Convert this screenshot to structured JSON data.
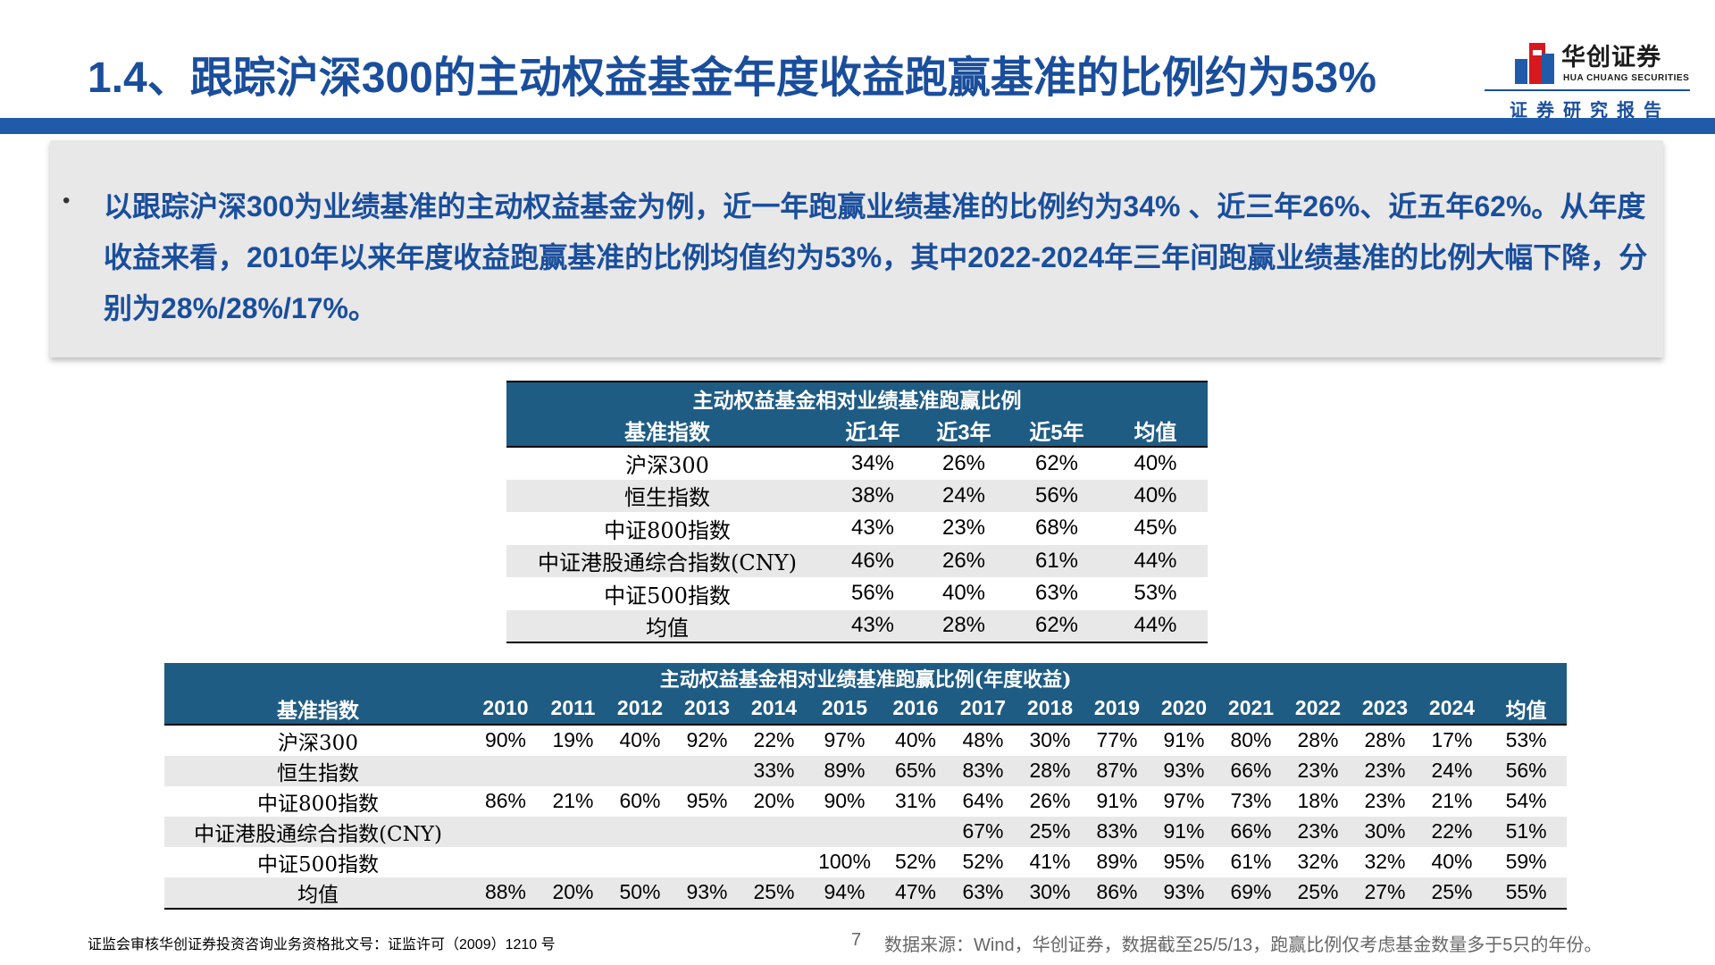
{
  "header": {
    "title": "1.4、跟踪沪深300的主动权益基金年度收益跑赢基准的比例约为53%",
    "logo_cn": "华创证券",
    "logo_en": "HUA CHUANG SECURITIES",
    "subtag": "证券研究报告"
  },
  "summary": {
    "bullet": "•",
    "text": "以跟踪沪深300为业绩基准的主动权益基金为例，近一年跑赢业绩基准的比例约为34% 、近三年26%、近五年62%。从年度收益来看，2010年以来年度收益跑赢基准的比例均值约为53%，其中2022-2024年三年间跑赢业绩基准的比例大幅下降，分别为28%/28%/17%。"
  },
  "table1": {
    "caption": "主动权益基金相对业绩基准跑赢比例",
    "headers": [
      "基准指数",
      "近1年",
      "近3年",
      "近5年",
      "均值"
    ],
    "rows": [
      [
        "沪深300",
        "34%",
        "26%",
        "62%",
        "40%"
      ],
      [
        "恒生指数",
        "38%",
        "24%",
        "56%",
        "40%"
      ],
      [
        "中证800指数",
        "43%",
        "23%",
        "68%",
        "45%"
      ],
      [
        "中证港股通综合指数(CNY)",
        "46%",
        "26%",
        "61%",
        "44%"
      ],
      [
        "中证500指数",
        "56%",
        "40%",
        "63%",
        "53%"
      ],
      [
        "均值",
        "43%",
        "28%",
        "62%",
        "44%"
      ]
    ]
  },
  "table2": {
    "caption": "主动权益基金相对业绩基准跑赢比例(年度收益)",
    "headers": [
      "基准指数",
      "2010",
      "2011",
      "2012",
      "2013",
      "2014",
      "2015",
      "2016",
      "2017",
      "2018",
      "2019",
      "2020",
      "2021",
      "2022",
      "2023",
      "2024",
      "均值"
    ],
    "rows": [
      [
        "沪深300",
        "90%",
        "19%",
        "40%",
        "92%",
        "22%",
        "97%",
        "40%",
        "48%",
        "30%",
        "77%",
        "91%",
        "80%",
        "28%",
        "28%",
        "17%",
        "53%"
      ],
      [
        "恒生指数",
        "",
        "",
        "",
        "",
        "33%",
        "89%",
        "65%",
        "83%",
        "28%",
        "87%",
        "93%",
        "66%",
        "23%",
        "23%",
        "24%",
        "56%"
      ],
      [
        "中证800指数",
        "86%",
        "21%",
        "60%",
        "95%",
        "20%",
        "90%",
        "31%",
        "64%",
        "26%",
        "91%",
        "97%",
        "73%",
        "18%",
        "23%",
        "21%",
        "54%"
      ],
      [
        "中证港股通综合指数(CNY)",
        "",
        "",
        "",
        "",
        "",
        "",
        "",
        "67%",
        "25%",
        "83%",
        "91%",
        "66%",
        "23%",
        "30%",
        "22%",
        "51%"
      ],
      [
        "中证500指数",
        "",
        "",
        "",
        "",
        "",
        "100%",
        "52%",
        "52%",
        "41%",
        "89%",
        "95%",
        "61%",
        "32%",
        "32%",
        "40%",
        "59%"
      ],
      [
        "均值",
        "88%",
        "20%",
        "50%",
        "93%",
        "25%",
        "94%",
        "47%",
        "63%",
        "30%",
        "86%",
        "93%",
        "69%",
        "25%",
        "27%",
        "25%",
        "55%"
      ]
    ]
  },
  "footer": {
    "license": "证监会审核华创证券投资咨询业务资格批文号：证监许可（2009）1210 号",
    "page_number": "7",
    "source": "数据来源：Wind，华创证券，数据截至25/5/13，跑赢比例仅考虑基金数量多于5只的年份。"
  },
  "colors": {
    "title_blue": "#1a4e9c",
    "bar_blue": "#1f5ba8",
    "table_header": "#1f5c84",
    "logo_red": "#d7181f"
  }
}
